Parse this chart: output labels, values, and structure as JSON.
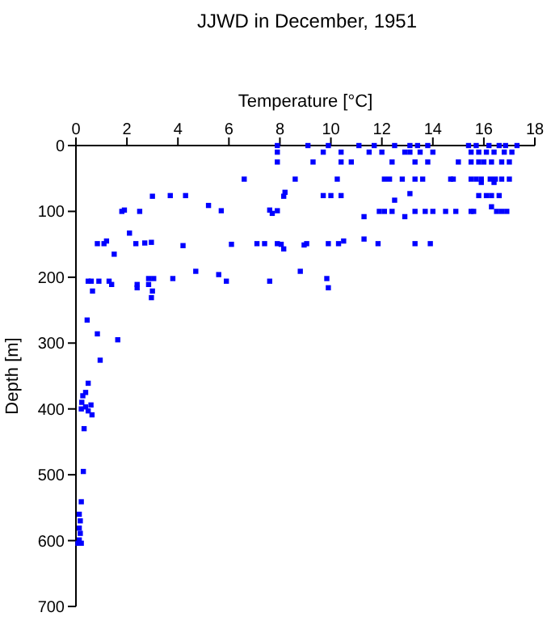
{
  "chart_data": {
    "type": "scatter",
    "title": "JJWD in December, 1951",
    "xlabel": "Temperature [°C]",
    "ylabel": "Depth [m]",
    "xlim": [
      0,
      18
    ],
    "xticks": [
      0,
      2,
      4,
      6,
      8,
      10,
      12,
      14,
      16,
      18
    ],
    "ylim": [
      700,
      0
    ],
    "yticks": [
      0,
      100,
      200,
      300,
      400,
      500,
      600,
      700
    ],
    "marker": "square",
    "grid": false,
    "series": [
      {
        "color": "#0000ff",
        "x": [
          7.9,
          7.9,
          7.9,
          6.6,
          8.6,
          8.2,
          8.15,
          3.0,
          3.7,
          4.3,
          1.8,
          1.9,
          2.5,
          5.2,
          5.7,
          7.6,
          7.7,
          7.9,
          2.1,
          0.84,
          1.1,
          1.2,
          1.5,
          2.35,
          2.7,
          2.96,
          4.2,
          6.1,
          7.1,
          7.4,
          7.9,
          8.05,
          8.15,
          8.95,
          4.7,
          5.6,
          5.9,
          7.6,
          8.8,
          0.48,
          0.6,
          0.65,
          0.9,
          1.3,
          1.4,
          2.4,
          2.4,
          2.85,
          2.85,
          3.05,
          3.0,
          2.96,
          3.8,
          0.44,
          0.84,
          1.64,
          0.95,
          0.48,
          9.1,
          9.9,
          11.1,
          11.7,
          12.5,
          13.1,
          13.4,
          13.8,
          15.4,
          15.7,
          16.2,
          16.6,
          16.85,
          17.3,
          9.7,
          10.4,
          11.5,
          12.0,
          12.9,
          13.1,
          13.5,
          14.0,
          15.5,
          15.8,
          16.1,
          16.4,
          16.8,
          17.1,
          9.3,
          10.4,
          10.8,
          12.4,
          13.3,
          13.8,
          15.0,
          15.5,
          15.8,
          16.0,
          16.3,
          16.7,
          17.0,
          10.25,
          12.1,
          12.3,
          12.8,
          13.3,
          13.6,
          14.7,
          14.8,
          15.5,
          15.7,
          15.9,
          16.25,
          16.45,
          16.7,
          17.0,
          15.9,
          16.4,
          9.7,
          10.0,
          10.4,
          13.1,
          15.8,
          16.1,
          16.3,
          16.6,
          12.5,
          16.3,
          11.9,
          12.1,
          12.4,
          13.3,
          13.7,
          14.0,
          14.5,
          14.9,
          15.5,
          15.6,
          16.5,
          16.7,
          16.9,
          11.3,
          12.9,
          9.05,
          9.9,
          10.3,
          11.3,
          11.85,
          13.3,
          13.9,
          10.5,
          9.84,
          9.9,
          0.38,
          0.27,
          0.23,
          0.21,
          0.38,
          0.59,
          0.48,
          0.63,
          0.32,
          0.29,
          0.21,
          0.13,
          0.17,
          0.13,
          0.17,
          0.13,
          0.21,
          0.08
        ],
        "values": [
          0,
          10,
          25,
          51,
          51,
          71,
          77,
          77,
          76,
          76,
          100,
          98,
          100,
          91,
          99,
          98,
          103,
          99,
          133,
          149,
          149,
          145,
          165,
          149,
          148,
          147,
          152,
          150,
          149,
          149,
          149,
          150,
          157,
          151,
          191,
          196,
          206,
          206,
          191,
          206,
          206,
          221,
          206,
          206,
          211,
          211,
          216,
          211,
          202,
          202,
          221,
          231,
          202,
          265,
          286,
          295,
          326,
          361,
          0,
          0,
          0,
          0,
          0,
          0,
          0,
          0,
          0,
          0,
          0,
          0,
          0,
          0,
          10,
          10,
          10,
          10,
          10,
          10,
          10,
          10,
          10,
          10,
          10,
          10,
          10,
          10,
          25,
          25,
          25,
          25,
          25,
          25,
          25,
          25,
          25,
          25,
          25,
          25,
          25,
          51,
          51,
          51,
          51,
          51,
          51,
          51,
          51,
          51,
          51,
          51,
          51,
          51,
          51,
          51,
          56,
          56,
          76,
          76,
          76,
          73,
          76,
          76,
          76,
          76,
          83,
          93,
          100,
          100,
          100,
          100,
          100,
          100,
          100,
          100,
          100,
          100,
          100,
          100,
          100,
          108,
          108,
          149,
          149,
          149,
          142,
          149,
          149,
          149,
          145,
          202,
          216,
          375,
          380,
          390,
          400,
          397,
          394,
          403,
          409,
          430,
          495,
          541,
          560,
          570,
          581,
          589,
          599,
          604,
          604
        ]
      }
    ]
  }
}
